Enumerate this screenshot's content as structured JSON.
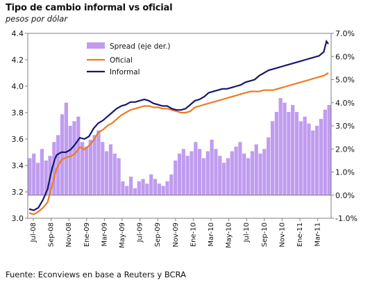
{
  "header": {
    "title": "Tipo de cambio informal vs oficial",
    "subtitle": "pesos por dólar"
  },
  "footer": {
    "source": "Fuente: Econviews en base a Reuters y BCRA"
  },
  "colors": {
    "spread": "#c09cf0",
    "oficial": "#f07a20",
    "informal": "#16166e",
    "axis": "#7f7f7f"
  },
  "chart_data": {
    "type": "line",
    "title": "Tipo de cambio informal vs oficial",
    "subtitle": "pesos por dólar",
    "left_axis": {
      "min": 3.0,
      "max": 4.4,
      "ticks": [
        3.0,
        3.2,
        3.4,
        3.6,
        3.8,
        4.0,
        4.2,
        4.4
      ],
      "tick_labels": [
        "3.0",
        "3.2",
        "3.4",
        "3.6",
        "3.8",
        "4.0",
        "4.2",
        "4.4"
      ]
    },
    "right_axis": {
      "min": -1.0,
      "max": 7.0,
      "ticks": [
        -1,
        0,
        1,
        2,
        3,
        4,
        5,
        6,
        7
      ],
      "tick_labels": [
        "-1.0%",
        "0.0%",
        "1.0%",
        "2.0%",
        "3.0%",
        "4.0%",
        "5.0%",
        "6.0%",
        "7.0%"
      ]
    },
    "x_tick_labels": [
      "Jul-08",
      "Sep-08",
      "Nov-08",
      "Ene-09",
      "Mar-09",
      "May-09",
      "Jul-09",
      "Sep-09",
      "Nov-09",
      "Ene-10",
      "Mar-10",
      "May-10",
      "Jul-10",
      "Sep-10",
      "Nov-10",
      "Ene-11",
      "Mar-11"
    ],
    "x_range_months": [
      0,
      10.5
    ],
    "legend": {
      "placement": "top-center",
      "entries": [
        {
          "label": "Spread (eje der.)",
          "series": "spread"
        },
        {
          "label": "Oficial",
          "series": "oficial"
        },
        {
          "label": "Informal",
          "series": "informal"
        }
      ]
    },
    "series": [
      {
        "name": "Oficial",
        "axis": "left",
        "style": "line",
        "points": [
          [
            0,
            3.04
          ],
          [
            0.5,
            3.03
          ],
          [
            1.0,
            3.05
          ],
          [
            1.5,
            3.08
          ],
          [
            2.0,
            3.12
          ],
          [
            2.3,
            3.2
          ],
          [
            2.5,
            3.25
          ],
          [
            2.8,
            3.33
          ],
          [
            3.0,
            3.38
          ],
          [
            3.5,
            3.44
          ],
          [
            4.0,
            3.46
          ],
          [
            4.5,
            3.47
          ],
          [
            5.0,
            3.49
          ],
          [
            5.5,
            3.54
          ],
          [
            6.0,
            3.52
          ],
          [
            6.5,
            3.55
          ],
          [
            7.0,
            3.59
          ],
          [
            7.5,
            3.65
          ],
          [
            8.0,
            3.67
          ],
          [
            8.5,
            3.7
          ],
          [
            9.0,
            3.72
          ],
          [
            9.5,
            3.75
          ],
          [
            10.0,
            3.78
          ],
          [
            10.5,
            3.8
          ],
          [
            11.0,
            3.82
          ],
          [
            11.5,
            3.83
          ],
          [
            12.0,
            3.84
          ],
          [
            12.5,
            3.85
          ],
          [
            13.0,
            3.85
          ],
          [
            13.5,
            3.84
          ],
          [
            14.0,
            3.84
          ],
          [
            14.5,
            3.83
          ],
          [
            15.0,
            3.83
          ],
          [
            15.5,
            3.82
          ],
          [
            16.0,
            3.81
          ],
          [
            16.5,
            3.8
          ],
          [
            17.0,
            3.8
          ],
          [
            17.5,
            3.81
          ],
          [
            18.0,
            3.84
          ],
          [
            18.5,
            3.85
          ],
          [
            19.0,
            3.86
          ],
          [
            19.5,
            3.87
          ],
          [
            20.0,
            3.88
          ],
          [
            20.5,
            3.89
          ],
          [
            21.0,
            3.9
          ],
          [
            21.5,
            3.91
          ],
          [
            22.0,
            3.92
          ],
          [
            22.5,
            3.93
          ],
          [
            23.0,
            3.94
          ],
          [
            23.5,
            3.95
          ],
          [
            24.0,
            3.96
          ],
          [
            24.5,
            3.96
          ],
          [
            25.0,
            3.96
          ],
          [
            25.5,
            3.97
          ],
          [
            26.0,
            3.97
          ],
          [
            26.5,
            3.97
          ],
          [
            27.0,
            3.98
          ],
          [
            27.5,
            3.99
          ],
          [
            28.0,
            4.0
          ],
          [
            28.5,
            4.01
          ],
          [
            29.0,
            4.02
          ],
          [
            29.5,
            4.03
          ],
          [
            30.0,
            4.04
          ],
          [
            30.5,
            4.05
          ],
          [
            31.0,
            4.06
          ],
          [
            31.5,
            4.07
          ],
          [
            32.0,
            4.08
          ],
          [
            32.5,
            4.1
          ]
        ]
      },
      {
        "name": "Informal",
        "axis": "left",
        "style": "line",
        "points": [
          [
            0,
            3.07
          ],
          [
            0.5,
            3.06
          ],
          [
            1.0,
            3.08
          ],
          [
            1.5,
            3.14
          ],
          [
            2.0,
            3.22
          ],
          [
            2.3,
            3.32
          ],
          [
            2.5,
            3.38
          ],
          [
            2.8,
            3.45
          ],
          [
            3.0,
            3.48
          ],
          [
            3.5,
            3.5
          ],
          [
            4.0,
            3.5
          ],
          [
            4.5,
            3.52
          ],
          [
            5.0,
            3.56
          ],
          [
            5.5,
            3.61
          ],
          [
            6.0,
            3.6
          ],
          [
            6.5,
            3.62
          ],
          [
            7.0,
            3.68
          ],
          [
            7.5,
            3.72
          ],
          [
            8.0,
            3.74
          ],
          [
            8.5,
            3.77
          ],
          [
            9.0,
            3.8
          ],
          [
            9.5,
            3.83
          ],
          [
            10.0,
            3.85
          ],
          [
            10.5,
            3.86
          ],
          [
            11.0,
            3.88
          ],
          [
            11.5,
            3.88
          ],
          [
            12.0,
            3.89
          ],
          [
            12.5,
            3.9
          ],
          [
            13.0,
            3.89
          ],
          [
            13.5,
            3.87
          ],
          [
            14.0,
            3.86
          ],
          [
            14.5,
            3.85
          ],
          [
            15.0,
            3.85
          ],
          [
            15.5,
            3.83
          ],
          [
            16.0,
            3.82
          ],
          [
            16.5,
            3.82
          ],
          [
            17.0,
            3.83
          ],
          [
            17.5,
            3.86
          ],
          [
            18.0,
            3.89
          ],
          [
            18.5,
            3.9
          ],
          [
            19.0,
            3.92
          ],
          [
            19.5,
            3.95
          ],
          [
            20.0,
            3.96
          ],
          [
            20.5,
            3.97
          ],
          [
            21.0,
            3.98
          ],
          [
            21.5,
            3.98
          ],
          [
            22.0,
            3.99
          ],
          [
            22.5,
            4.0
          ],
          [
            23.0,
            4.01
          ],
          [
            23.5,
            4.03
          ],
          [
            24.0,
            4.04
          ],
          [
            24.5,
            4.05
          ],
          [
            25.0,
            4.08
          ],
          [
            25.5,
            4.1
          ],
          [
            26.0,
            4.12
          ],
          [
            26.5,
            4.13
          ],
          [
            27.0,
            4.14
          ],
          [
            27.5,
            4.15
          ],
          [
            28.0,
            4.16
          ],
          [
            28.5,
            4.17
          ],
          [
            29.0,
            4.18
          ],
          [
            29.5,
            4.19
          ],
          [
            30.0,
            4.2
          ],
          [
            30.5,
            4.21
          ],
          [
            31.0,
            4.22
          ],
          [
            31.5,
            4.23
          ],
          [
            32.0,
            4.26
          ],
          [
            32.3,
            4.34
          ],
          [
            32.5,
            4.32
          ]
        ]
      },
      {
        "name": "Spread (eje der.)",
        "axis": "right",
        "style": "bar",
        "points": [
          [
            0,
            1.6
          ],
          [
            1,
            1.8
          ],
          [
            2,
            1.4
          ],
          [
            3,
            2.0
          ],
          [
            4,
            1.5
          ],
          [
            5,
            1.7
          ],
          [
            6,
            2.3
          ],
          [
            7,
            2.6
          ],
          [
            8,
            3.5
          ],
          [
            9,
            4.0
          ],
          [
            10,
            3.0
          ],
          [
            11,
            3.2
          ],
          [
            12,
            3.4
          ],
          [
            13,
            2.3
          ],
          [
            14,
            2.1
          ],
          [
            15,
            2.4
          ],
          [
            16,
            2.6
          ],
          [
            17,
            2.8
          ],
          [
            18,
            2.3
          ],
          [
            19,
            1.9
          ],
          [
            20,
            2.2
          ],
          [
            21,
            1.8
          ],
          [
            22,
            1.6
          ],
          [
            23,
            0.6
          ],
          [
            24,
            0.4
          ],
          [
            25,
            0.8
          ],
          [
            26,
            0.3
          ],
          [
            27,
            0.6
          ],
          [
            28,
            0.7
          ],
          [
            29,
            0.5
          ],
          [
            30,
            0.9
          ],
          [
            31,
            0.7
          ],
          [
            32,
            0.5
          ],
          [
            33,
            0.4
          ],
          [
            34,
            0.6
          ],
          [
            35,
            0.9
          ],
          [
            36,
            1.5
          ],
          [
            37,
            1.8
          ],
          [
            38,
            2.0
          ],
          [
            39,
            1.7
          ],
          [
            40,
            1.9
          ],
          [
            41,
            2.3
          ],
          [
            42,
            2.0
          ],
          [
            43,
            1.6
          ],
          [
            44,
            1.9
          ],
          [
            45,
            2.4
          ],
          [
            46,
            2.0
          ],
          [
            47,
            1.7
          ],
          [
            48,
            1.4
          ],
          [
            49,
            1.6
          ],
          [
            50,
            1.9
          ],
          [
            51,
            2.1
          ],
          [
            52,
            2.3
          ],
          [
            53,
            1.8
          ],
          [
            54,
            1.6
          ],
          [
            55,
            1.9
          ],
          [
            56,
            2.2
          ],
          [
            57,
            1.8
          ],
          [
            58,
            2.0
          ],
          [
            59,
            2.5
          ],
          [
            60,
            3.2
          ],
          [
            61,
            3.6
          ],
          [
            62,
            4.2
          ],
          [
            63,
            4.0
          ],
          [
            64,
            3.6
          ],
          [
            65,
            3.9
          ],
          [
            66,
            3.6
          ],
          [
            67,
            3.2
          ],
          [
            68,
            3.4
          ],
          [
            69,
            3.1
          ],
          [
            70,
            2.8
          ],
          [
            71,
            3.0
          ],
          [
            72,
            3.3
          ],
          [
            73,
            3.7
          ],
          [
            74,
            3.9
          ]
        ]
      }
    ]
  }
}
